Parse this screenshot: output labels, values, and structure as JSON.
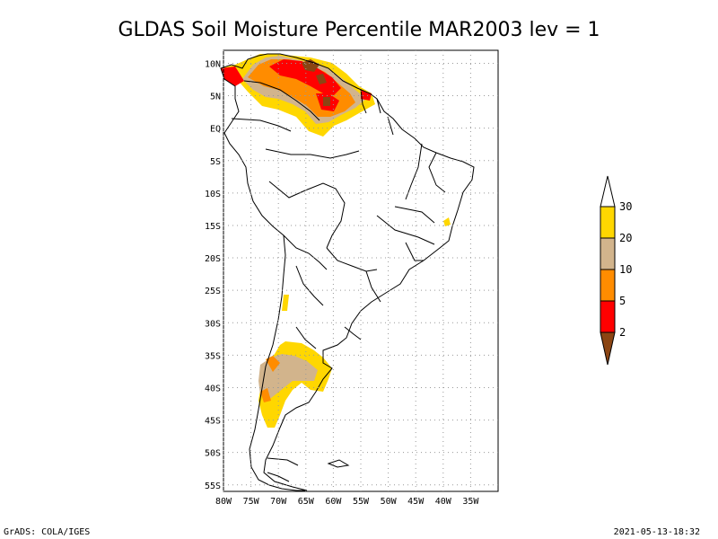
{
  "title": "GLDAS Soil Moisture Percentile MAR2003 lev = 1",
  "map": {
    "lon_range": [
      -80,
      -30
    ],
    "lat_range": [
      -56,
      12
    ],
    "x_ticks": [
      "80W",
      "75W",
      "70W",
      "65W",
      "60W",
      "55W",
      "50W",
      "45W",
      "40W",
      "35W"
    ],
    "y_ticks": [
      "10N",
      "5N",
      "EQ",
      "5S",
      "10S",
      "15S",
      "20S",
      "25S",
      "30S",
      "35S",
      "40S",
      "45S",
      "50S",
      "55S"
    ],
    "grid": true
  },
  "colorbar": {
    "labels": [
      "2",
      "5",
      "10",
      "20",
      "30"
    ],
    "colors": {
      "below_2": "#8B4513",
      "2_5": "#FF0000",
      "5_10": "#FF8C00",
      "10_20": "#D2B48C",
      "20_30": "#FFD700",
      "above_30": "#FFFFFF"
    }
  },
  "footer_left": "GrADS: COLA/IGES",
  "footer_right": "2021-05-13-18:32"
}
